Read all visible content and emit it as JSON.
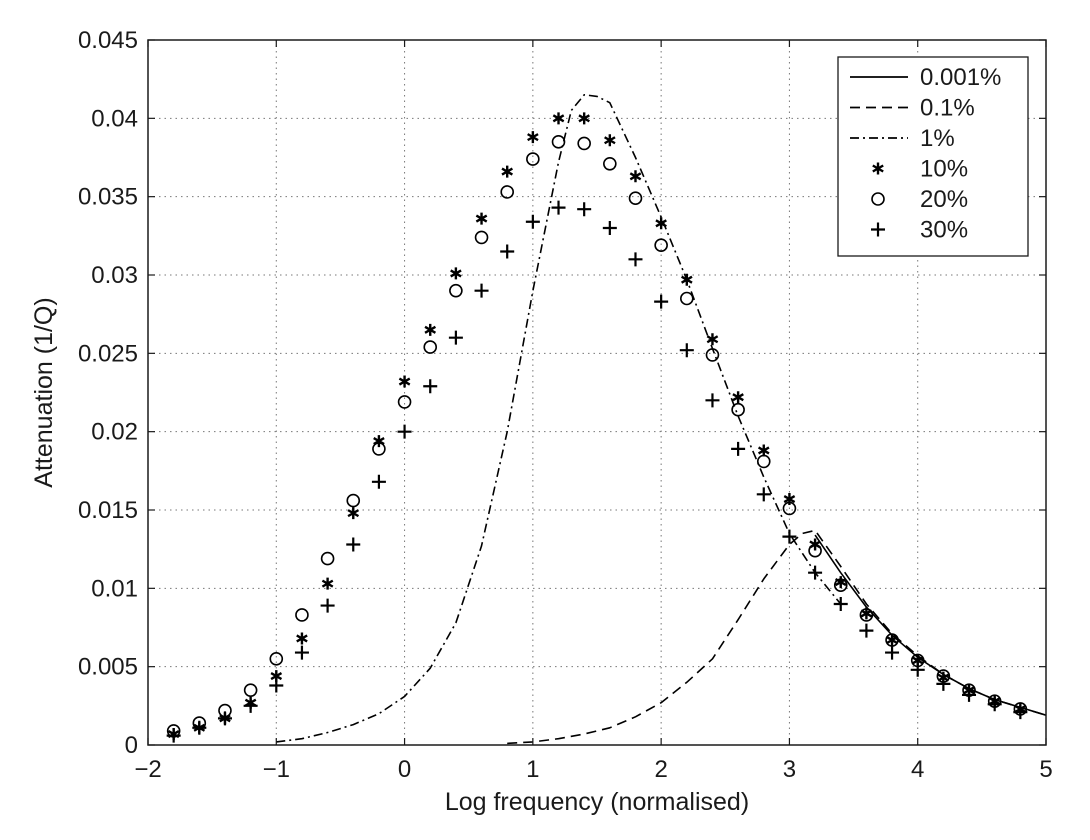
{
  "chart_data": {
    "type": "line",
    "title": "",
    "xlabel": "Log frequency (normalised)",
    "ylabel": "Attenuation (1/Q)",
    "xlim": [
      -2,
      5
    ],
    "ylim": [
      0,
      0.045
    ],
    "xticks": [
      -2,
      -1,
      0,
      1,
      2,
      3,
      4,
      5
    ],
    "xtick_labels": [
      "−2",
      "−1",
      "0",
      "1",
      "2",
      "3",
      "4",
      "5"
    ],
    "yticks": [
      0,
      0.005,
      0.01,
      0.015,
      0.02,
      0.025,
      0.03,
      0.035,
      0.04,
      0.045
    ],
    "ytick_labels": [
      "0",
      "0.005",
      "0.01",
      "0.015",
      "0.02",
      "0.025",
      "0.03",
      "0.035",
      "0.04",
      "0.045"
    ],
    "grid": true,
    "legend_position": "top-right",
    "series": [
      {
        "name": "0.001%",
        "style": "solid",
        "color": "#000000",
        "x": [
          3.2,
          3.4,
          3.6,
          3.8,
          4.0,
          4.2,
          4.4,
          4.6,
          4.8,
          5.0
        ],
        "y": [
          0.0134,
          0.011,
          0.0088,
          0.007,
          0.0056,
          0.0045,
          0.0036,
          0.0029,
          0.0024,
          0.0019
        ]
      },
      {
        "name": "0.1%",
        "style": "dashed",
        "color": "#000000",
        "x": [
          0.8,
          1.0,
          1.2,
          1.4,
          1.6,
          1.8,
          2.0,
          2.2,
          2.4,
          2.6,
          2.8,
          3.0,
          3.1,
          3.2,
          3.4,
          3.6,
          3.8,
          4.0,
          4.2,
          4.4,
          4.6,
          4.8,
          5.0
        ],
        "y": [
          0.0001,
          0.0002,
          0.0004,
          0.0007,
          0.0011,
          0.0018,
          0.0027,
          0.004,
          0.0055,
          0.008,
          0.0106,
          0.0128,
          0.0135,
          0.0137,
          0.0114,
          0.009,
          0.0071,
          0.0057,
          0.0045,
          0.0036,
          0.0029,
          0.0024,
          0.0019
        ]
      },
      {
        "name": "1%",
        "style": "dashdot",
        "color": "#000000",
        "x": [
          -1.0,
          -0.8,
          -0.6,
          -0.4,
          -0.2,
          0.0,
          0.2,
          0.4,
          0.6,
          0.8,
          1.0,
          1.2,
          1.3,
          1.4,
          1.5,
          1.6,
          1.8,
          2.0,
          2.2,
          2.4,
          2.6,
          2.8,
          3.0,
          3.2,
          3.4
        ],
        "y": [
          0.0002,
          0.0004,
          0.0008,
          0.0013,
          0.002,
          0.0031,
          0.0049,
          0.0078,
          0.0127,
          0.02,
          0.029,
          0.0372,
          0.0405,
          0.0415,
          0.0414,
          0.041,
          0.0375,
          0.0337,
          0.0297,
          0.0253,
          0.021,
          0.0171,
          0.0135,
          0.011,
          0.009
        ]
      },
      {
        "name": "10%",
        "style": "marker",
        "marker": "asterisk",
        "color": "#000000",
        "x": [
          -1.8,
          -1.6,
          -1.4,
          -1.2,
          -1.0,
          -0.8,
          -0.6,
          -0.4,
          -0.2,
          0.0,
          0.2,
          0.4,
          0.6,
          0.8,
          1.0,
          1.2,
          1.4,
          1.6,
          1.8,
          2.0,
          2.2,
          2.4,
          2.6,
          2.8,
          3.0,
          3.2,
          3.4,
          3.6,
          3.8,
          4.0,
          4.2,
          4.4,
          4.6,
          4.8
        ],
        "y": [
          0.0007,
          0.0011,
          0.0017,
          0.0027,
          0.0044,
          0.0068,
          0.0103,
          0.0148,
          0.0194,
          0.0232,
          0.0265,
          0.0301,
          0.0336,
          0.0366,
          0.0388,
          0.04,
          0.04,
          0.0386,
          0.0363,
          0.0333,
          0.0297,
          0.0259,
          0.0222,
          0.0188,
          0.0157,
          0.0128,
          0.0104,
          0.0084,
          0.0067,
          0.0054,
          0.0043,
          0.0035,
          0.0028,
          0.0023
        ]
      },
      {
        "name": "20%",
        "style": "marker",
        "marker": "circle",
        "color": "#000000",
        "x": [
          -1.8,
          -1.6,
          -1.4,
          -1.2,
          -1.0,
          -0.8,
          -0.6,
          -0.4,
          -0.2,
          0.0,
          0.2,
          0.4,
          0.6,
          0.8,
          1.0,
          1.2,
          1.4,
          1.6,
          1.8,
          2.0,
          2.2,
          2.4,
          2.6,
          2.8,
          3.0,
          3.2,
          3.4,
          3.6,
          3.8,
          4.0,
          4.2,
          4.4,
          4.6,
          4.8
        ],
        "y": [
          0.0009,
          0.0014,
          0.0022,
          0.0035,
          0.0055,
          0.0083,
          0.0119,
          0.0156,
          0.0189,
          0.0219,
          0.0254,
          0.029,
          0.0324,
          0.0353,
          0.0374,
          0.0385,
          0.0384,
          0.0371,
          0.0349,
          0.0319,
          0.0285,
          0.0249,
          0.0214,
          0.0181,
          0.0151,
          0.0124,
          0.0102,
          0.0083,
          0.0067,
          0.0054,
          0.0044,
          0.0035,
          0.0028,
          0.0023
        ]
      },
      {
        "name": "30%",
        "style": "marker",
        "marker": "plus",
        "color": "#000000",
        "x": [
          -1.8,
          -1.6,
          -1.4,
          -1.2,
          -1.0,
          -0.8,
          -0.6,
          -0.4,
          -0.2,
          0.0,
          0.2,
          0.4,
          0.6,
          0.8,
          1.0,
          1.2,
          1.4,
          1.6,
          1.8,
          2.0,
          2.2,
          2.4,
          2.6,
          2.8,
          3.0,
          3.2,
          3.4,
          3.6,
          3.8,
          4.0,
          4.2,
          4.4,
          4.6,
          4.8
        ],
        "y": [
          0.0006,
          0.0011,
          0.0017,
          0.0025,
          0.0038,
          0.0059,
          0.0089,
          0.0128,
          0.0168,
          0.02,
          0.0229,
          0.026,
          0.029,
          0.0315,
          0.0334,
          0.0343,
          0.0342,
          0.033,
          0.031,
          0.0283,
          0.0252,
          0.022,
          0.0189,
          0.016,
          0.0133,
          0.011,
          0.009,
          0.0073,
          0.0059,
          0.0048,
          0.0039,
          0.0032,
          0.0026,
          0.0021
        ]
      }
    ]
  }
}
